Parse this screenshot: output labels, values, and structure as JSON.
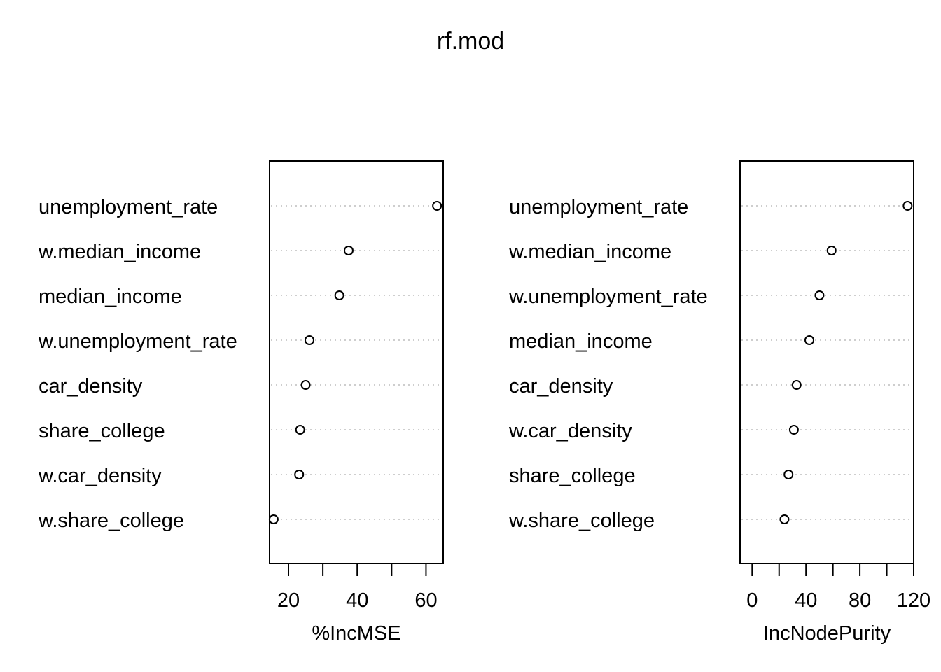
{
  "title": "rf.mod",
  "chart_data": [
    {
      "type": "scatter",
      "subtype": "dotchart",
      "xlabel": "%IncMSE",
      "ylabel": "",
      "xlim": [
        14.5,
        65
      ],
      "xticks": [
        20,
        30,
        40,
        50,
        60
      ],
      "xtick_labels": [
        "20",
        "",
        "40",
        "",
        "60"
      ],
      "grid": "dotted horizontal guide per variable",
      "categories": [
        "unemployment_rate",
        "w.median_income",
        "median_income",
        "w.unemployment_rate",
        "car_density",
        "share_college",
        "w.car_density",
        "w.share_college"
      ],
      "values": [
        63.2,
        37.5,
        34.8,
        26.1,
        25.0,
        23.4,
        23.1,
        15.7
      ]
    },
    {
      "type": "scatter",
      "subtype": "dotchart",
      "xlabel": "IncNodePurity",
      "ylabel": "",
      "xlim": [
        -9,
        120
      ],
      "xticks": [
        0,
        20,
        40,
        60,
        80,
        100,
        120
      ],
      "xtick_labels": [
        "0",
        "",
        "40",
        "",
        "80",
        "",
        "120"
      ],
      "grid": "dotted horizontal guide per variable",
      "categories": [
        "unemployment_rate",
        "w.median_income",
        "w.unemployment_rate",
        "median_income",
        "car_density",
        "w.car_density",
        "share_college",
        "w.share_college"
      ],
      "values": [
        115.5,
        59.0,
        50.0,
        42.5,
        33.0,
        31.0,
        27.0,
        24.0
      ]
    }
  ]
}
